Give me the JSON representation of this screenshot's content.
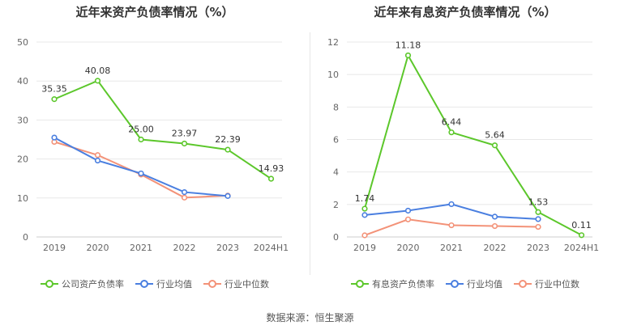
{
  "source_text": "数据来源：恒生聚源",
  "colors": {
    "company": "#5cc72b",
    "average": "#4a7fe0",
    "median": "#f39278",
    "grid": "#e8e8e8",
    "axis": "#cccccc"
  },
  "chart_data": [
    {
      "type": "line",
      "title": "近年来资产负债率情况（%）",
      "categories": [
        "2019",
        "2020",
        "2021",
        "2022",
        "2023",
        "2024H1"
      ],
      "ylim": [
        0,
        50
      ],
      "yticks": [
        0,
        10,
        20,
        30,
        40,
        50
      ],
      "series": [
        {
          "name": "公司资产负债率",
          "key": "company",
          "values": [
            35.35,
            40.08,
            25.0,
            23.97,
            22.39,
            14.93
          ],
          "labels": [
            "35.35",
            "40.08",
            "25.00",
            "23.97",
            "22.39",
            "14.93"
          ]
        },
        {
          "name": "行业均值",
          "key": "average",
          "values": [
            25.5,
            19.6,
            16.3,
            11.5,
            10.5,
            null
          ]
        },
        {
          "name": "行业中位数",
          "key": "median",
          "values": [
            24.4,
            21.0,
            16.0,
            10.1,
            10.6,
            null
          ]
        }
      ]
    },
    {
      "type": "line",
      "title": "近年来有息资产负债率情况（%）",
      "categories": [
        "2019",
        "2020",
        "2021",
        "2022",
        "2023",
        "2024H1"
      ],
      "ylim": [
        0,
        12
      ],
      "yticks": [
        0,
        2,
        4,
        6,
        8,
        10,
        12
      ],
      "series": [
        {
          "name": "有息资产负债率",
          "key": "company",
          "values": [
            1.74,
            11.18,
            6.44,
            5.64,
            1.53,
            0.11
          ],
          "labels": [
            "1.74",
            "11.18",
            "6.44",
            "5.64",
            "1.53",
            "0.11"
          ]
        },
        {
          "name": "行业均值",
          "key": "average",
          "values": [
            1.35,
            1.62,
            2.02,
            1.25,
            1.1,
            null
          ]
        },
        {
          "name": "行业中位数",
          "key": "median",
          "values": [
            0.1,
            1.08,
            0.72,
            0.67,
            0.62,
            null
          ]
        }
      ]
    }
  ]
}
